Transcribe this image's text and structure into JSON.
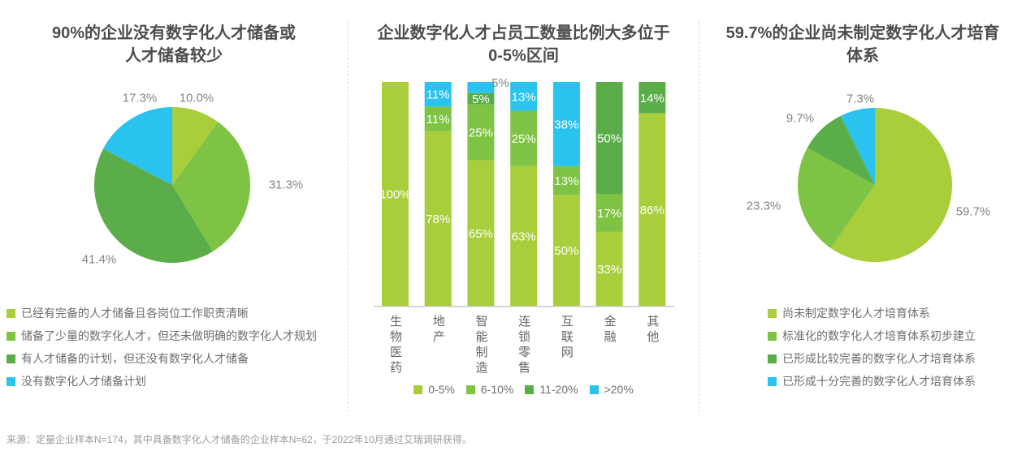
{
  "palette": {
    "band1": "#a8ce3b",
    "band2": "#7fc344",
    "band3": "#5aad49",
    "band4": "#2ac3ef",
    "title_text": "#4d4d4d",
    "label_gray": "#848484",
    "footer_gray": "#9b9b9b"
  },
  "panels": {
    "reserve": {
      "title_line1": "90%的企业没有数字化人才储备或",
      "title_line2": "人才储备较少"
    },
    "ratio": {
      "title_line1": "企业数字化人才占员工数量比例大多位于",
      "title_line2": "0-5%区间"
    },
    "training": {
      "title_line1": "59.7%的企业尚未制定数字化人才培育",
      "title_line2": "体系"
    }
  },
  "footer": {
    "source_text": "来源：定量企业样本N=174，其中具备数字化人才储备的企业样本N=62，于2022年10月通过艾瑞调研获得。"
  },
  "chart_data": [
    {
      "id": "reserve-pie",
      "type": "pie",
      "title": "90%的企业没有数字化人才储备或人才储备较少",
      "labels": [
        "已经有完备的人才储备且各岗位工作职责清晰",
        "储备了少量的数字化人才，但还未做明确的数字化人才规划",
        "有人才储备的计划，但还没有数字化人才储备",
        "没有数字化人才储备计划"
      ],
      "values": [
        10.0,
        31.3,
        41.4,
        17.3
      ],
      "value_labels": [
        "10.0%",
        "31.3%",
        "41.4%",
        "17.3%"
      ],
      "colors": [
        "#a8ce3b",
        "#7fc344",
        "#5aad49",
        "#2ac3ef"
      ],
      "start_angle_deg": 0,
      "direction": "clockwise",
      "legend_position": "bottom-left"
    },
    {
      "id": "ratio-bars",
      "type": "bar",
      "stacked": true,
      "title": "企业数字化人才占员工数量比例大多位于0-5%区间",
      "categories": [
        "生物医药",
        "地产",
        "智能制造",
        "连锁零售",
        "互联网",
        "金融",
        "其他"
      ],
      "series": [
        {
          "name": "0-5%",
          "color": "#a8ce3b",
          "values": [
            100,
            78,
            65,
            63,
            50,
            33,
            86
          ]
        },
        {
          "name": "6-10%",
          "color": "#7fc344",
          "values": [
            0,
            11,
            25,
            25,
            13,
            17,
            0
          ]
        },
        {
          "name": "11-20%",
          "color": "#5aad49",
          "values": [
            0,
            0,
            5,
            0,
            0,
            50,
            14
          ]
        },
        {
          "name": ">20%",
          "color": "#2ac3ef",
          "values": [
            0,
            11,
            5,
            13,
            38,
            0,
            0
          ]
        }
      ],
      "unit": "%",
      "ylim": [
        0,
        100
      ],
      "grid": false,
      "legend_position": "bottom"
    },
    {
      "id": "training-pie",
      "type": "pie",
      "title": "59.7%的企业尚未制定数字化人才培育体系",
      "labels": [
        "尚未制定数字化人才培育体系",
        "标准化的数字化人才培育体系初步建立",
        "已形成比较完善的数字化人才培育体系",
        "已形成十分完善的数字化人才培育体系"
      ],
      "values": [
        59.7,
        23.3,
        9.7,
        7.3
      ],
      "value_labels": [
        "59.7%",
        "23.3%",
        "9.7%",
        "7.3%"
      ],
      "colors": [
        "#a8ce3b",
        "#7fc344",
        "#5aad49",
        "#2ac3ef"
      ],
      "start_angle_deg": 0,
      "direction": "clockwise",
      "legend_position": "bottom"
    }
  ]
}
